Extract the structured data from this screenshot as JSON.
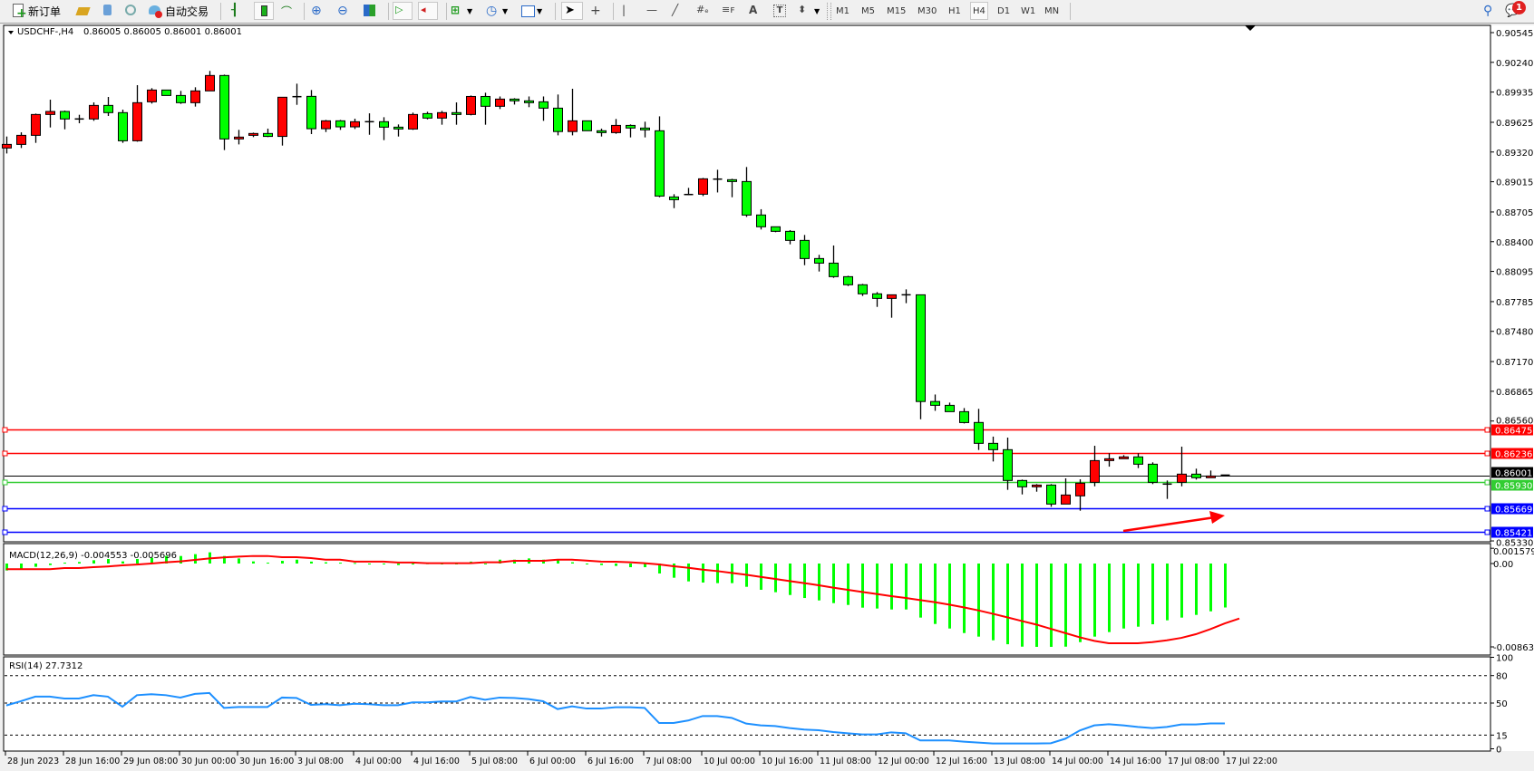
{
  "toolbar": {
    "new_order_label": "新订单",
    "auto_trading_label": "自动交易",
    "timeframes": [
      "M1",
      "M5",
      "M15",
      "M30",
      "H1",
      "H4",
      "D1",
      "W1",
      "MN"
    ],
    "active_timeframe": "H4",
    "notification_count": "1",
    "icons": [
      "new-order-icon",
      "market-watch-icon",
      "navigator-icon",
      "signals-icon",
      "auto-trading-icon",
      "bar-chart-icon",
      "candlestick-icon",
      "line-chart-icon",
      "zoom-in-icon",
      "zoom-out-icon",
      "tile-windows-icon",
      "autoscroll-icon",
      "chart-shift-icon",
      "indicators-icon",
      "periods-icon",
      "templates-icon",
      "cursor-icon",
      "crosshair-icon",
      "vertical-line-icon",
      "horizontal-line-icon",
      "trendline-icon",
      "fibonacci-expansion-icon",
      "fibonacci-fan-icon",
      "text-icon",
      "text-label-icon",
      "arrows-icon",
      "search-icon",
      "chat-icon"
    ]
  },
  "chart_header": {
    "symbol": "USDCHF-,H4",
    "ohlc": "0.86005 0.86005 0.86001 0.86001"
  },
  "colors": {
    "bull_candle": "#ff0000",
    "bear_candle": "#00ff00",
    "macd_histogram": "#00ff00",
    "macd_signal": "#ff0000",
    "rsi_line": "#1e90ff",
    "arrow": "#ff0000"
  },
  "chart_data": [
    {
      "type": "candlestick",
      "title": "USDCHF-,H4",
      "fields": [
        "open",
        "high",
        "low",
        "close"
      ],
      "ylim": [
        0.8533,
        0.90545
      ],
      "y_ticks": [
        "0.90545",
        "0.90240",
        "0.89935",
        "0.89625",
        "0.89320",
        "0.89015",
        "0.88705",
        "0.88400",
        "0.88095",
        "0.87785",
        "0.87480",
        "0.87170",
        "0.86865",
        "0.86560",
        "0.85330"
      ],
      "x_tick_labels": [
        {
          "label": "28 Jun 2023",
          "bar": 0
        },
        {
          "label": "28 Jun 16:00",
          "bar": 4
        },
        {
          "label": "29 Jun 08:00",
          "bar": 8
        },
        {
          "label": "30 Jun 00:00",
          "bar": 12
        },
        {
          "label": "30 Jun 16:00",
          "bar": 16
        },
        {
          "label": "3 Jul 08:00",
          "bar": 20
        },
        {
          "label": "4 Jul 00:00",
          "bar": 24
        },
        {
          "label": "4 Jul 16:00",
          "bar": 28
        },
        {
          "label": "5 Jul 08:00",
          "bar": 32
        },
        {
          "label": "6 Jul 00:00",
          "bar": 36
        },
        {
          "label": "6 Jul 16:00",
          "bar": 40
        },
        {
          "label": "7 Jul 08:00",
          "bar": 44
        },
        {
          "label": "10 Jul 00:00",
          "bar": 48
        },
        {
          "label": "10 Jul 16:00",
          "bar": 52
        },
        {
          "label": "11 Jul 08:00",
          "bar": 56
        },
        {
          "label": "12 Jul 00:00",
          "bar": 60
        },
        {
          "label": "12 Jul 16:00",
          "bar": 64
        },
        {
          "label": "13 Jul 08:00",
          "bar": 68
        },
        {
          "label": "14 Jul 00:00",
          "bar": 72
        },
        {
          "label": "14 Jul 16:00",
          "bar": 76
        },
        {
          "label": "17 Jul 08:00",
          "bar": 80
        },
        {
          "label": "17 Jul 22:00",
          "bar": 84
        }
      ],
      "candles": [
        [
          0.89361,
          0.89479,
          0.89305,
          0.89398
        ],
        [
          0.89398,
          0.89522,
          0.89361,
          0.89491
        ],
        [
          0.89491,
          0.89714,
          0.89414,
          0.89705
        ],
        [
          0.89705,
          0.89857,
          0.89572,
          0.89736
        ],
        [
          0.89736,
          0.89745,
          0.89553,
          0.89659
        ],
        [
          0.89659,
          0.89702,
          0.89615,
          0.89659
        ],
        [
          0.89659,
          0.89829,
          0.8964,
          0.89798
        ],
        [
          0.89798,
          0.89885,
          0.8969,
          0.89724
        ],
        [
          0.89724,
          0.89755,
          0.89414,
          0.89435
        ],
        [
          0.89435,
          0.90006,
          0.89426,
          0.89826
        ],
        [
          0.89835,
          0.89975,
          0.89817,
          0.89956
        ],
        [
          0.89956,
          0.89956,
          0.899,
          0.899
        ],
        [
          0.899,
          0.89947,
          0.89814,
          0.89826
        ],
        [
          0.89826,
          0.89984,
          0.89786,
          0.89947
        ],
        [
          0.89947,
          0.90152,
          0.89947,
          0.90105
        ],
        [
          0.90105,
          0.90114,
          0.8934,
          0.89454
        ],
        [
          0.89454,
          0.89547,
          0.89398,
          0.89473
        ],
        [
          0.89491,
          0.89519,
          0.89473,
          0.8951
        ],
        [
          0.8951,
          0.8956,
          0.89473,
          0.8948
        ],
        [
          0.8948,
          0.89885,
          0.89386,
          0.89882
        ],
        [
          0.89888,
          0.90021,
          0.89804,
          0.89888
        ],
        [
          0.89891,
          0.89956,
          0.89504,
          0.89559
        ],
        [
          0.89559,
          0.89649,
          0.89525,
          0.8964
        ],
        [
          0.8964,
          0.89649,
          0.89547,
          0.89578
        ],
        [
          0.89578,
          0.89662,
          0.89556,
          0.89631
        ],
        [
          0.89631,
          0.89717,
          0.89497,
          0.89631
        ],
        [
          0.89631,
          0.89677,
          0.89442,
          0.89575
        ],
        [
          0.89575,
          0.89603,
          0.89479,
          0.89556
        ],
        [
          0.89556,
          0.89724,
          0.89547,
          0.89705
        ],
        [
          0.89714,
          0.89733,
          0.89655,
          0.89668
        ],
        [
          0.89668,
          0.89742,
          0.896,
          0.89724
        ],
        [
          0.89724,
          0.89829,
          0.896,
          0.89705
        ],
        [
          0.89705,
          0.899,
          0.89696,
          0.8989
        ],
        [
          0.8989,
          0.89928,
          0.896,
          0.89789
        ],
        [
          0.89789,
          0.8989,
          0.89761,
          0.89863
        ],
        [
          0.89863,
          0.89872,
          0.89807,
          0.89845
        ],
        [
          0.89845,
          0.8989,
          0.8978,
          0.89826
        ],
        [
          0.89835,
          0.8989,
          0.8964,
          0.8977
        ],
        [
          0.8977,
          0.8991,
          0.89491,
          0.8953
        ],
        [
          0.8953,
          0.89969,
          0.89491,
          0.8964
        ],
        [
          0.8964,
          0.8964,
          0.89538,
          0.89538
        ],
        [
          0.89538,
          0.8956,
          0.89479,
          0.89519
        ],
        [
          0.89519,
          0.89659,
          0.89507,
          0.89593
        ],
        [
          0.89593,
          0.89603,
          0.8947,
          0.89566
        ],
        [
          0.89566,
          0.89631,
          0.8947,
          0.89547
        ],
        [
          0.89538,
          0.89686,
          0.88856,
          0.88868
        ],
        [
          0.88859,
          0.88887,
          0.88744,
          0.88831
        ],
        [
          0.88884,
          0.88952,
          0.88878,
          0.88884
        ],
        [
          0.88887,
          0.89054,
          0.88868,
          0.89045
        ],
        [
          0.89042,
          0.89138,
          0.88905,
          0.89042
        ],
        [
          0.89036,
          0.89045,
          0.88856,
          0.89017
        ],
        [
          0.89017,
          0.89166,
          0.88654,
          0.88673
        ],
        [
          0.88674,
          0.88733,
          0.88525,
          0.88553
        ],
        [
          0.88553,
          0.88553,
          0.88497,
          0.88506
        ],
        [
          0.88506,
          0.88519,
          0.88373,
          0.88413
        ],
        [
          0.88413,
          0.88469,
          0.88159,
          0.88227
        ],
        [
          0.88227,
          0.88265,
          0.88094,
          0.8818
        ],
        [
          0.8818,
          0.88361,
          0.88029,
          0.88041
        ],
        [
          0.88041,
          0.8805,
          0.87945,
          0.87958
        ],
        [
          0.87958,
          0.87967,
          0.87843,
          0.87865
        ],
        [
          0.87865,
          0.87883,
          0.87731,
          0.87818
        ],
        [
          0.87818,
          0.87855,
          0.8762,
          0.87855
        ],
        [
          0.87855,
          0.87911,
          0.87769,
          0.87855
        ],
        [
          0.87855,
          0.87855,
          0.86578,
          0.8676
        ],
        [
          0.8676,
          0.86832,
          0.86665,
          0.86721
        ],
        [
          0.86721,
          0.86749,
          0.86656,
          0.86656
        ],
        [
          0.86656,
          0.86693,
          0.86535,
          0.86544
        ],
        [
          0.86545,
          0.86685,
          0.86263,
          0.86331
        ],
        [
          0.86331,
          0.864,
          0.86145,
          0.86266
        ],
        [
          0.86266,
          0.8639,
          0.85854,
          0.8595
        ],
        [
          0.8595,
          0.85959,
          0.85807,
          0.85885
        ],
        [
          0.85885,
          0.85913,
          0.85835,
          0.85903
        ],
        [
          0.85903,
          0.85913,
          0.8568,
          0.85708
        ],
        [
          0.85708,
          0.85972,
          0.85708,
          0.85801
        ],
        [
          0.85792,
          0.85962,
          0.8564,
          0.85922
        ],
        [
          0.85931,
          0.86306,
          0.8589,
          0.86154
        ],
        [
          0.86154,
          0.86229,
          0.86092,
          0.86173
        ],
        [
          0.86173,
          0.8621,
          0.86173,
          0.86192
        ],
        [
          0.86192,
          0.86229,
          0.86077,
          0.86117
        ],
        [
          0.86117,
          0.86136,
          0.85913,
          0.85931
        ],
        [
          0.85913,
          0.8595,
          0.85761,
          0.85913
        ],
        [
          0.85931,
          0.86297,
          0.8589,
          0.86015
        ],
        [
          0.86015,
          0.86071,
          0.85959,
          0.85978
        ],
        [
          0.85978,
          0.86052,
          0.85978,
          0.85996
        ],
        [
          0.86005,
          0.86005,
          0.86001,
          0.86001
        ]
      ],
      "horizontal_lines": [
        {
          "price": "0.86475",
          "color": "#ff0000"
        },
        {
          "price": "0.86236",
          "color": "#ff0000"
        },
        {
          "price": "0.85930",
          "color": "#32cd32"
        },
        {
          "price": "0.85669",
          "color": "#0000ff"
        },
        {
          "price": "0.85421",
          "color": "#0000ff"
        }
      ],
      "current_price": {
        "price": "0.86001",
        "color": "#000000"
      }
    },
    {
      "type": "bar+line",
      "title": "MACD(12,26,9) -0.004553 -0.005696",
      "ylim": [
        -0.008633,
        0.001579
      ],
      "y_ticks": [
        "0.001579",
        "0.00",
        "-0.008633"
      ],
      "series": [
        {
          "values": [
            -0.00072,
            -0.00053,
            -0.00034,
            -0.00016,
            9e-05,
            0.00016,
            0.00034,
            0.00047,
            0.00022,
            0.00047,
            0.00059,
            0.00078,
            0.00078,
            0.00097,
            0.00116,
            0.00078,
            0.00053,
            0.00022,
            9e-05,
            0.00028,
            0.0004,
            0.0002,
            0.00013,
            9e-05,
            6e-05,
            -6e-05,
            -6e-05,
            -0.00016,
            -0.0001,
            3e-05,
            0,
            0,
            0.0002,
            0,
            0.0004,
            0.0004,
            0.00053,
            0.0004,
            0.00034,
            0.00013,
            -6e-05,
            -0.00016,
            -0.00025,
            -0.00038,
            -0.00038,
            -0.00103,
            -0.00147,
            -0.00185,
            -0.00197,
            -0.00203,
            -0.00203,
            -0.00241,
            -0.00272,
            -0.00297,
            -0.00326,
            -0.00357,
            -0.00382,
            -0.0041,
            -0.00429,
            -0.00457,
            -0.00466,
            -0.00476,
            -0.00476,
            -0.0056,
            -0.00626,
            -0.00673,
            -0.0072,
            -0.00757,
            -0.00795,
            -0.00836,
            -0.00861,
            -0.00863,
            -0.00863,
            -0.00861,
            -0.00814,
            -0.00757,
            -0.0071,
            -0.00673,
            -0.00654,
            -0.00629,
            -0.00588,
            -0.0056,
            -0.00532,
            -0.00495,
            -0.004553
          ]
        },
        {
          "values": [
            -0.00059,
            -0.00059,
            -0.00059,
            -0.00059,
            -0.00047,
            -0.00047,
            -0.00038,
            -0.0003,
            -0.00019,
            -0.0001,
            0,
            0.00013,
            0.00022,
            0.00038,
            0.00053,
            0.00063,
            0.00072,
            0.00078,
            0.00078,
            0.00066,
            0.00066,
            0.00056,
            0.0004,
            0.0004,
            0.0002,
            0.0002,
            0.0002,
            0.0001,
            0.0001,
            3e-05,
            3e-05,
            3e-05,
            3e-05,
            0.00013,
            0.00013,
            0.00028,
            0.00028,
            0.00028,
            0.0004,
            0.0004,
            0.0003,
            0.0002,
            0.00019,
            0.00013,
            3e-05,
            -9e-05,
            -0.00028,
            -0.00044,
            -0.00063,
            -0.00078,
            -0.00097,
            -0.00116,
            -0.00138,
            -0.0016,
            -0.00182,
            -0.00203,
            -0.00225,
            -0.0025,
            -0.00272,
            -0.00294,
            -0.00316,
            -0.00338,
            -0.00357,
            -0.00379,
            -0.004,
            -0.00426,
            -0.00454,
            -0.00485,
            -0.0052,
            -0.00557,
            -0.00595,
            -0.00632,
            -0.00676,
            -0.0072,
            -0.00764,
            -0.00801,
            -0.00826,
            -0.00826,
            -0.00826,
            -0.00814,
            -0.00795,
            -0.0077,
            -0.00732,
            -0.0068,
            -0.0062,
            -0.005696
          ]
        }
      ]
    },
    {
      "type": "line",
      "title": "RSI(14) 27.7312",
      "ylim": [
        0,
        100
      ],
      "y_ticks": [
        "100",
        "80",
        "50",
        "15",
        "0"
      ],
      "levels": [
        80,
        50,
        15
      ],
      "values": [
        47.4,
        52,
        57,
        57,
        55,
        55,
        58.6,
        57,
        46,
        58.6,
        59.6,
        58.6,
        56,
        60,
        61,
        44.7,
        45.7,
        45.7,
        45.7,
        56,
        55.6,
        48,
        48.7,
        47.7,
        49.3,
        48.7,
        47.7,
        47.7,
        50.7,
        50.7,
        51.7,
        51.7,
        56.6,
        53.6,
        56,
        55.6,
        54.3,
        52,
        43.4,
        46.4,
        44,
        44,
        45.4,
        45.4,
        44.7,
        28.2,
        28.2,
        30.9,
        35.8,
        35.8,
        33.8,
        27.6,
        25.6,
        24.9,
        22.6,
        21,
        20.3,
        18.3,
        17,
        15.7,
        15.7,
        18,
        17,
        9.1,
        9.1,
        9.1,
        7.8,
        6.8,
        5.8,
        5.8,
        5.8,
        5.8,
        6.1,
        11,
        20,
        25.6,
        26.9,
        25.6,
        23.9,
        22.6,
        23.9,
        26.6,
        26.6,
        27.7,
        27.7312
      ]
    }
  ]
}
